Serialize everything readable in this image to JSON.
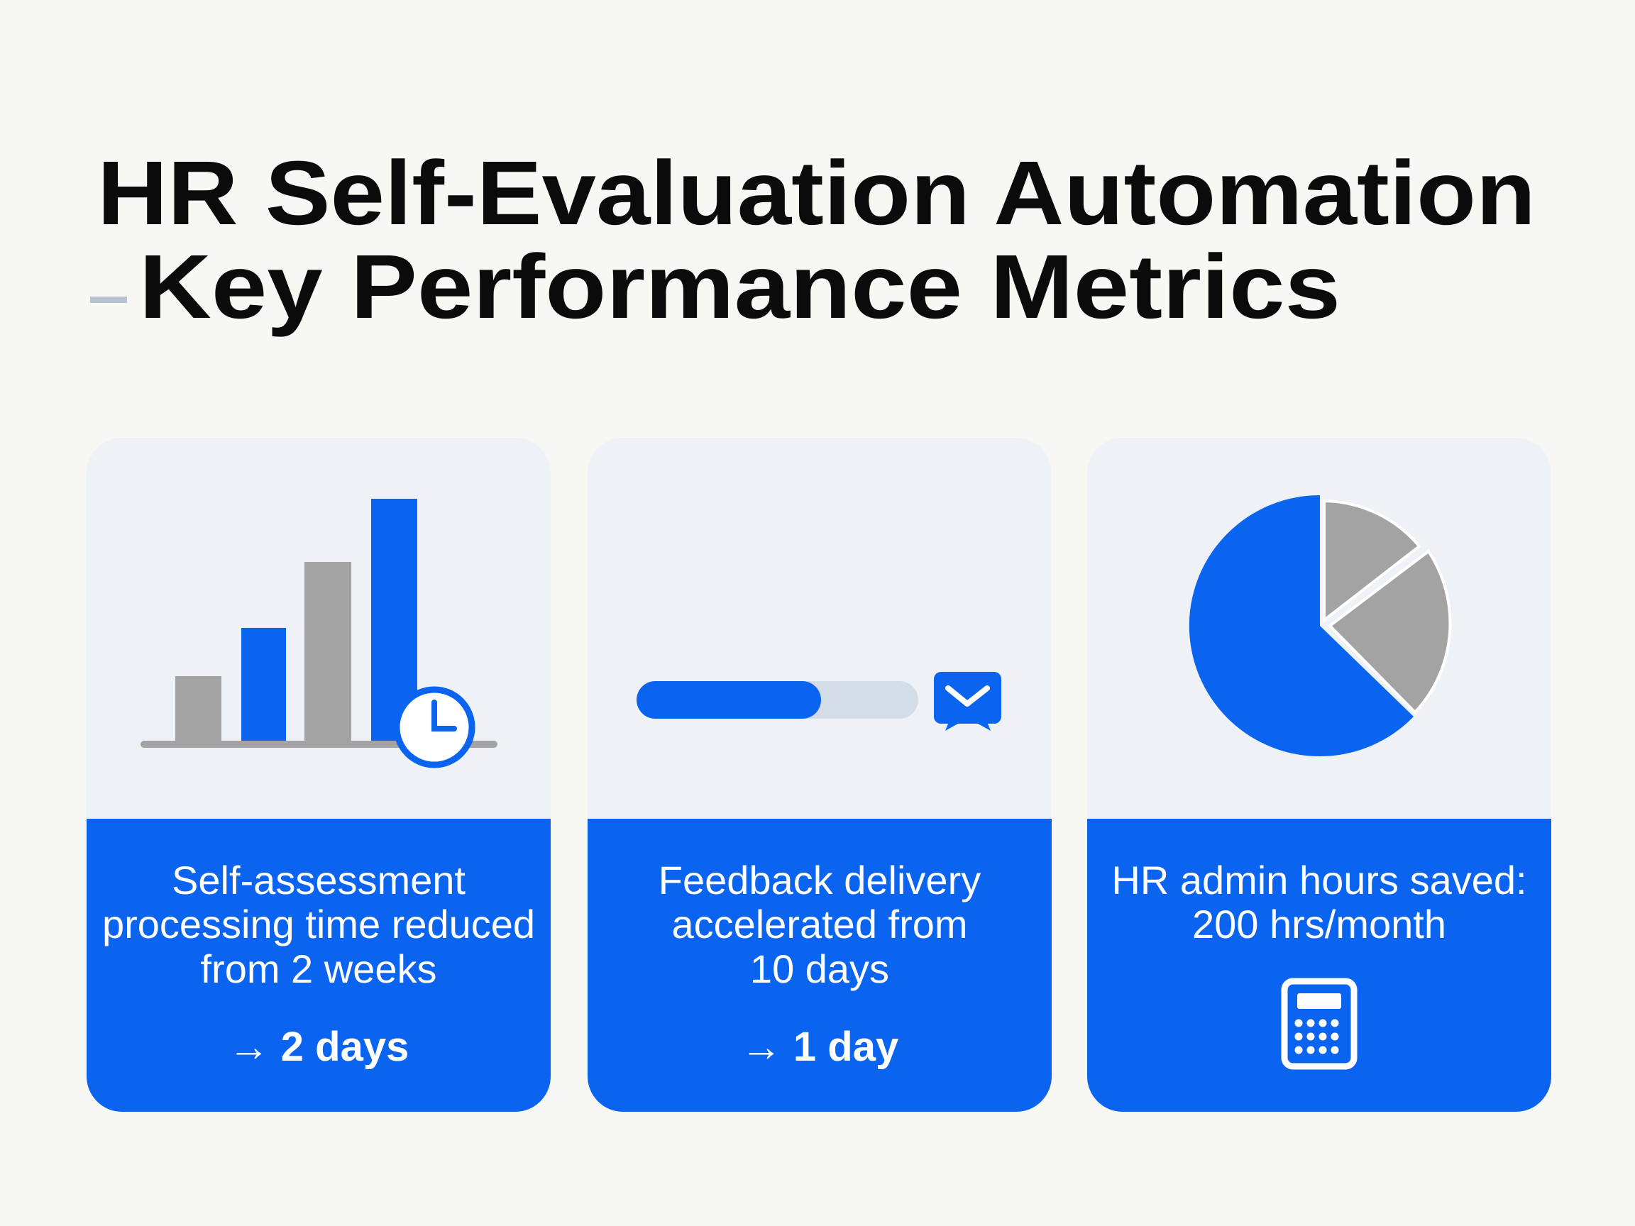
{
  "header": {
    "title_line1": "HR Self-Evaluation Automation",
    "title_line2": "Key Performance Metrics"
  },
  "cards": [
    {
      "lines": [
        "Self-assessment",
        "processing time reduced",
        "from 2 weeks"
      ],
      "result": "→ 2 days"
    },
    {
      "lines": [
        "Feedback delivery",
        "accelerated from",
        "10 days"
      ],
      "result": "→ 1 day"
    },
    {
      "lines": [
        "HR admin hours saved:",
        "200 hrs/month"
      ]
    }
  ]
}
